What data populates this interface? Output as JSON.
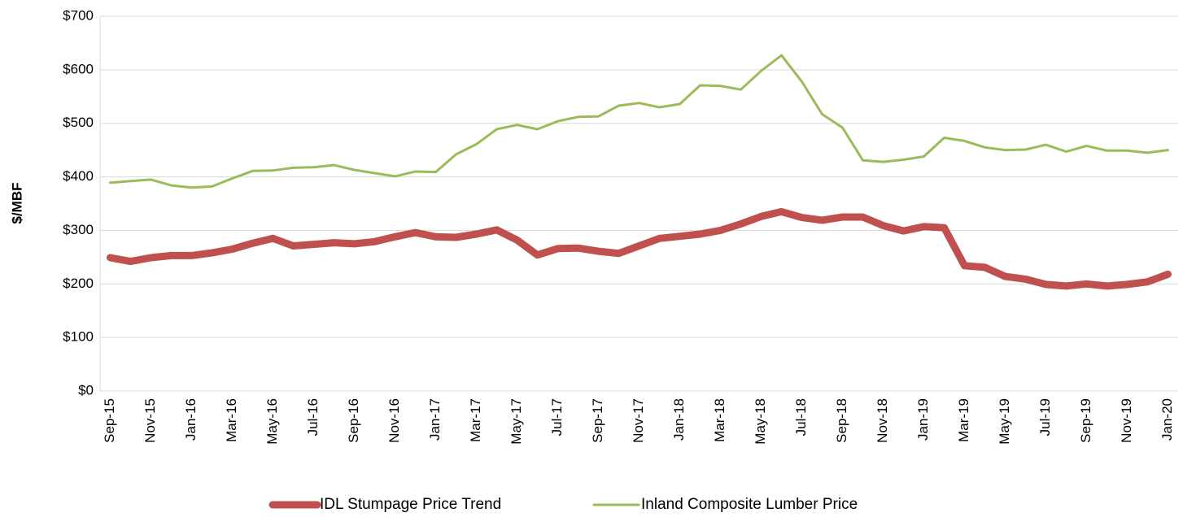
{
  "chart_data": {
    "type": "line",
    "y_label": "$/MBF",
    "categories": [
      "Sep-15",
      null,
      "Nov-15",
      null,
      "Jan-16",
      null,
      "Mar-16",
      null,
      "May-16",
      null,
      "Jul-16",
      null,
      "Sep-16",
      null,
      "Nov-16",
      null,
      "Jan-17",
      null,
      "Mar-17",
      null,
      "May-17",
      null,
      "Jul-17",
      null,
      "Sep-17",
      null,
      "Nov-17",
      null,
      "Jan-18",
      null,
      "Mar-18",
      null,
      "May-18",
      null,
      "Jul-18",
      null,
      "Sep-18",
      null,
      "Nov-18",
      null,
      "Jan-19",
      null,
      "Mar-19",
      null,
      "May-19",
      null,
      "Jul-19",
      null,
      "Sep-19",
      null,
      "Nov-19",
      null,
      "Jan-20"
    ],
    "series": [
      {
        "name": "IDL Stumpage Price Trend",
        "color": "#c0504d",
        "width": 9,
        "values": [
          249,
          242,
          249,
          253,
          253,
          258,
          265,
          276,
          285,
          271,
          274,
          277,
          275,
          279,
          288,
          296,
          288,
          287,
          293,
          301,
          282,
          254,
          266,
          267,
          261,
          257,
          271,
          285,
          289,
          293,
          300,
          312,
          326,
          335,
          324,
          319,
          325,
          325,
          309,
          299,
          307,
          305,
          234,
          231,
          214,
          209,
          199,
          196,
          200,
          196,
          199,
          204,
          218
        ]
      },
      {
        "name": "Inland Composite Lumber Price",
        "color": "#9bbb59",
        "width": 3,
        "values": [
          389,
          392,
          395,
          384,
          380,
          382,
          397,
          411,
          412,
          417,
          418,
          422,
          413,
          407,
          401,
          410,
          409,
          442,
          461,
          489,
          497,
          489,
          504,
          512,
          513,
          533,
          538,
          530,
          536,
          571,
          570,
          563,
          598,
          627,
          578,
          517,
          492,
          431,
          428,
          432,
          438,
          473,
          467,
          455,
          450,
          451,
          460,
          447,
          458,
          449,
          449,
          445,
          450
        ]
      }
    ],
    "ylim": [
      0,
      700
    ],
    "yticks": [
      {
        "value": 0,
        "label": "$0"
      },
      {
        "value": 100,
        "label": "$100"
      },
      {
        "value": 200,
        "label": "$200"
      },
      {
        "value": 300,
        "label": "$300"
      },
      {
        "value": 400,
        "label": "$400"
      },
      {
        "value": 500,
        "label": "$500"
      },
      {
        "value": 600,
        "label": "$600"
      },
      {
        "value": 700,
        "label": "$700"
      }
    ],
    "grid": true,
    "legend": "bottom"
  }
}
